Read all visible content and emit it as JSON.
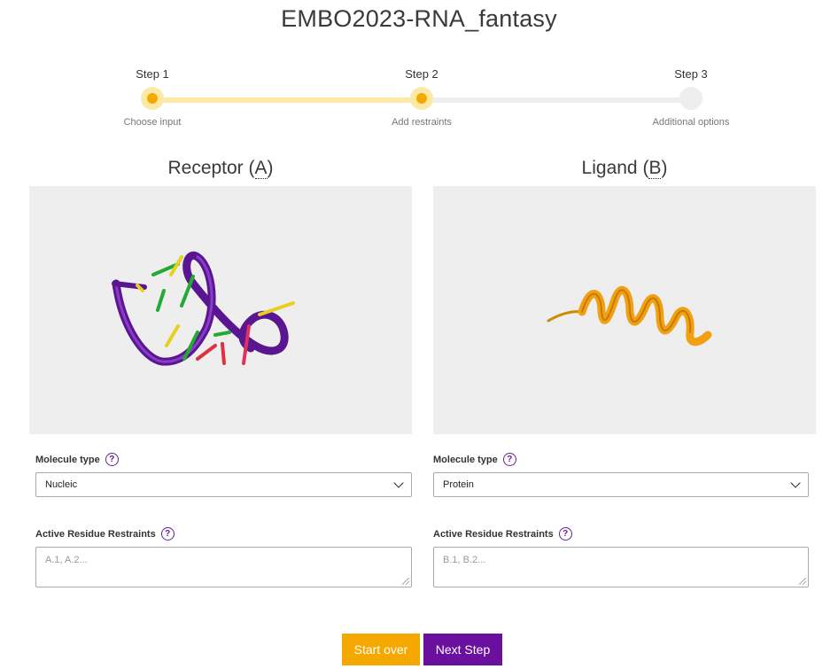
{
  "page": {
    "title": "EMBO2023-RNA_fantasy"
  },
  "steps": [
    {
      "label": "Step 1",
      "sublabel": "Choose input",
      "state": "active"
    },
    {
      "label": "Step 2",
      "sublabel": "Add restraints",
      "state": "active"
    },
    {
      "label": "Step 3",
      "sublabel": "Additional options",
      "state": "inactive"
    }
  ],
  "receptor": {
    "title_prefix": "Receptor (",
    "chain": "A",
    "title_suffix": ")",
    "molecule_type_label": "Molecule type",
    "molecule_type_value": "Nucleic",
    "restraints_label": "Active Residue Restraints",
    "restraints_placeholder": "A.1, A.2...",
    "structure_color": "#6a1b9a"
  },
  "ligand": {
    "title_prefix": "Ligand (",
    "chain": "B",
    "title_suffix": ")",
    "molecule_type_label": "Molecule type",
    "molecule_type_value": "Protein",
    "restraints_label": "Active Residue Restraints",
    "restraints_placeholder": "B.1, B.2...",
    "structure_color": "#f0a010"
  },
  "help_icon_text": "?",
  "buttons": {
    "start_over": "Start over",
    "next_step": "Next Step"
  },
  "colors": {
    "accent_orange": "#f5a800",
    "accent_purple": "#6a0f9e",
    "step_done": "#fde9a6"
  }
}
